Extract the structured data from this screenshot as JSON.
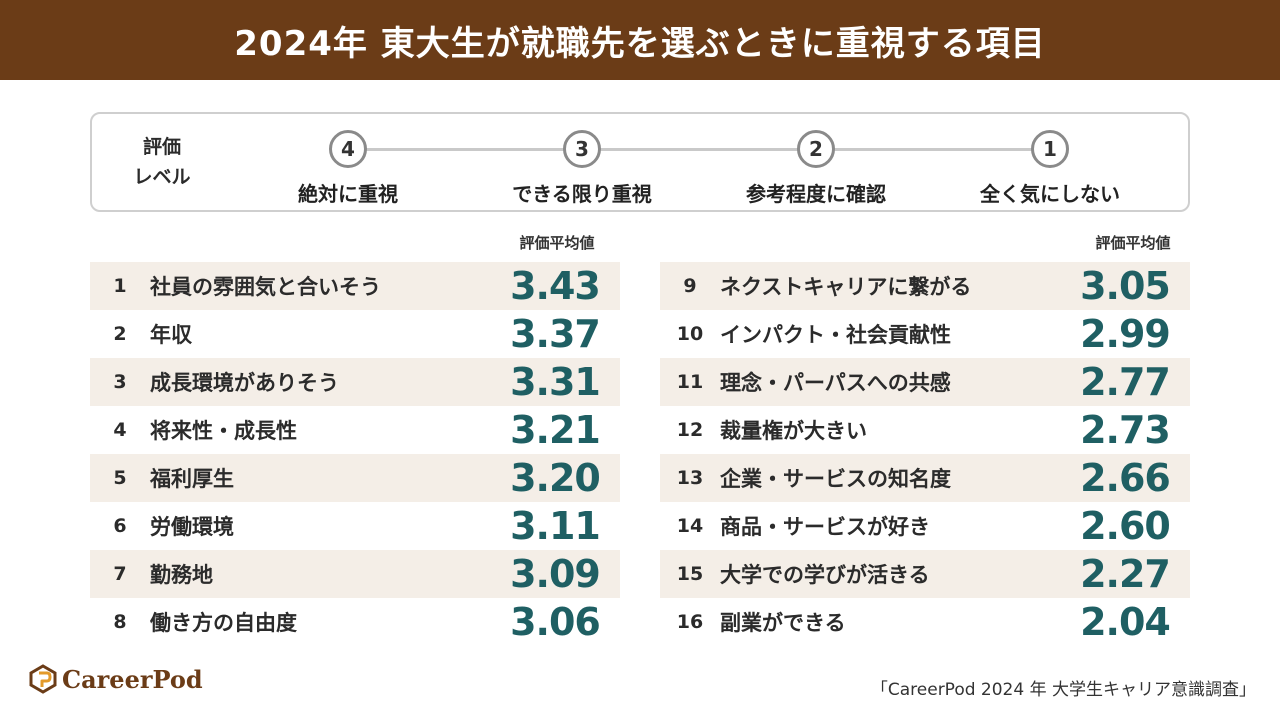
{
  "header": {
    "title": "2024年 東大生が就職先を選ぶときに重視する項目"
  },
  "legend": {
    "title_line1": "評価",
    "title_line2": "レベル",
    "levels": [
      {
        "value": "4",
        "label": "絶対に重視"
      },
      {
        "value": "3",
        "label": "できる限り重視"
      },
      {
        "value": "2",
        "label": "参考程度に確認"
      },
      {
        "value": "1",
        "label": "全く気にしない"
      }
    ]
  },
  "columns": {
    "score_header": "評価平均値"
  },
  "chart_data": {
    "type": "table",
    "title": "2024年 東大生が就職先を選ぶときに重視する項目",
    "value_label": "評価平均値",
    "scale": [
      1,
      4
    ],
    "rows": [
      {
        "rank": "1",
        "item": "社員の雰囲気と合いそう",
        "score": "3.43"
      },
      {
        "rank": "2",
        "item": "年収",
        "score": "3.37"
      },
      {
        "rank": "3",
        "item": "成長環境がありそう",
        "score": "3.31"
      },
      {
        "rank": "4",
        "item": "将来性・成長性",
        "score": "3.21"
      },
      {
        "rank": "5",
        "item": "福利厚生",
        "score": "3.20"
      },
      {
        "rank": "6",
        "item": "労働環境",
        "score": "3.11"
      },
      {
        "rank": "7",
        "item": "勤務地",
        "score": "3.09"
      },
      {
        "rank": "8",
        "item": "働き方の自由度",
        "score": "3.06"
      },
      {
        "rank": "9",
        "item": "ネクストキャリアに繋がる",
        "score": "3.05"
      },
      {
        "rank": "10",
        "item": "インパクト・社会貢献性",
        "score": "2.99"
      },
      {
        "rank": "11",
        "item": "理念・パーパスへの共感",
        "score": "2.77"
      },
      {
        "rank": "12",
        "item": "裁量権が大きい",
        "score": "2.73"
      },
      {
        "rank": "13",
        "item": "企業・サービスの知名度",
        "score": "2.66"
      },
      {
        "rank": "14",
        "item": "商品・サービスが好き",
        "score": "2.60"
      },
      {
        "rank": "15",
        "item": "大学での学びが活きる",
        "score": "2.27"
      },
      {
        "rank": "16",
        "item": "副業ができる",
        "score": "2.04"
      }
    ]
  },
  "footer": {
    "logo_text": "CareerPod",
    "source": "「CareerPod 2024 年 大学生キャリア意識調査」"
  },
  "colors": {
    "header_bg": "#6b3c17",
    "score": "#1f5f63",
    "row_shade": "#f4eee7",
    "logo": "#6b3c17",
    "logo_accent": "#e39a2a"
  }
}
